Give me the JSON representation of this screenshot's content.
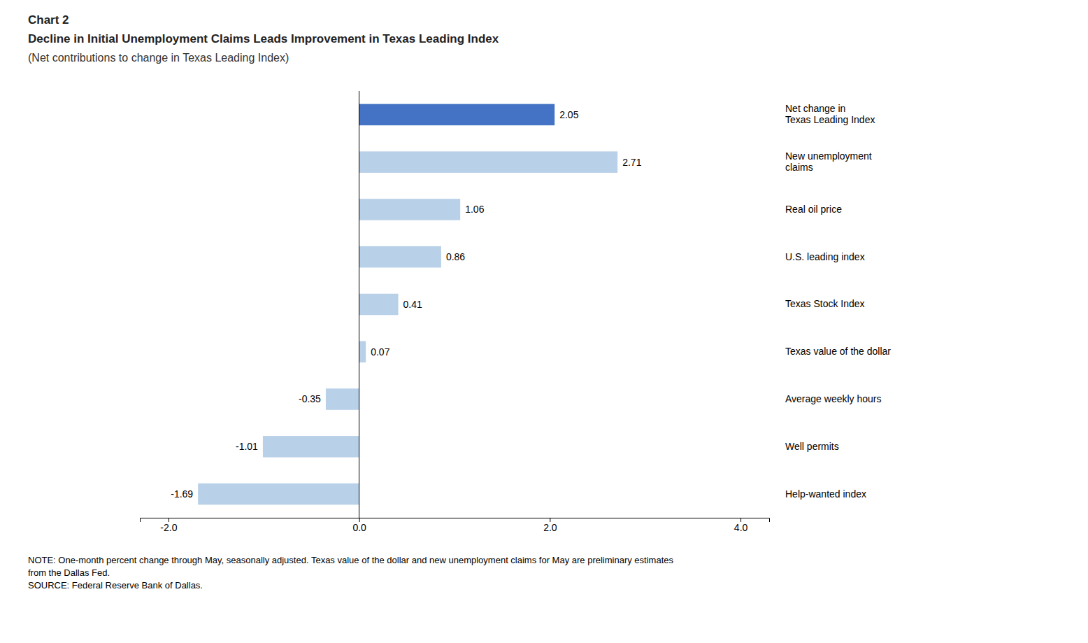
{
  "chart_data": {
    "type": "bar",
    "orientation": "horizontal",
    "title": "Decline in Initial Unemployment Claims Leads Improvement in Texas Leading Index",
    "subtitle": "(Net contributions to change in Texas Leading Index)",
    "annotations": [
      "Chart 2",
      "NOTE: One-month percent change through May, seasonally adjusted. Texas value of the dollar and new unemployment claims for May are preliminary estimates\nfrom the Dallas Fed.\nSOURCE: Federal Reserve Bank of Dallas."
    ],
    "categories": [
      "Help-wanted index",
      "Well permits",
      "Average weekly hours",
      "Texas value of the dollar",
      "Texas Stock Index",
      "U.S. leading index",
      "Real oil price",
      "New unemployment\nclaims",
      "Net change in\nTexas Leading Index"
    ],
    "values": [
      -1.69,
      -1.01,
      -0.35,
      0.07,
      0.41,
      0.86,
      1.06,
      2.71,
      2.05
    ],
    "colors": [
      "#b8d0e8",
      "#b8d0e8",
      "#b8d0e8",
      "#b8d0e8",
      "#b8d0e8",
      "#b8d0e8",
      "#b8d0e8",
      "#b8d0e8",
      "#4472c4"
    ],
    "xlim": [
      -2.3,
      4.3
    ],
    "xticks": [
      {
        "value": -2.0,
        "label": "-2.0"
      },
      {
        "value": 0.0,
        "label": "0.0"
      },
      {
        "value": 2.0,
        "label": "2.0"
      },
      {
        "value": 4.0,
        "label": "4.0"
      }
    ],
    "data_labels": true,
    "grid": false
  }
}
